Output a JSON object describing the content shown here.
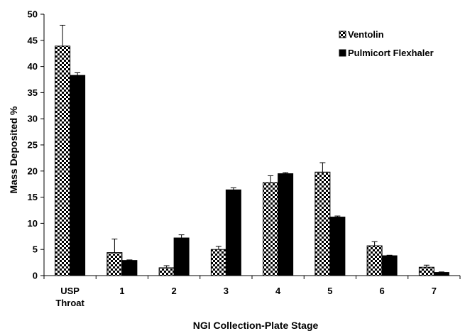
{
  "chart_data": {
    "type": "bar",
    "title": "",
    "xlabel": "NGI Collection-Plate Stage",
    "ylabel": "Mass Deposited %",
    "ylim": [
      0,
      50
    ],
    "yticks": [
      0,
      5,
      10,
      15,
      20,
      25,
      30,
      35,
      40,
      45,
      50
    ],
    "grid": false,
    "legend_position": "top-right",
    "categories": [
      [
        "USP",
        "Throat"
      ],
      [
        "1"
      ],
      [
        "2"
      ],
      [
        "3"
      ],
      [
        "4"
      ],
      [
        "5"
      ],
      [
        "6"
      ],
      [
        "7"
      ]
    ],
    "series": [
      {
        "name": "Ventolin",
        "pattern": "checkered",
        "color": "#000000",
        "values": [
          43.9,
          4.4,
          1.5,
          5.0,
          17.8,
          19.8,
          5.7,
          1.6
        ],
        "error": [
          4.0,
          2.6,
          0.4,
          0.6,
          1.3,
          1.8,
          0.8,
          0.4
        ]
      },
      {
        "name": "Pulmicort Flexhaler",
        "pattern": "solid",
        "color": "#000000",
        "values": [
          38.3,
          2.9,
          7.2,
          16.4,
          19.5,
          11.2,
          3.8,
          0.6
        ],
        "error": [
          0.5,
          0.1,
          0.6,
          0.4,
          0.2,
          0.2,
          0.1,
          0.1
        ]
      }
    ]
  }
}
